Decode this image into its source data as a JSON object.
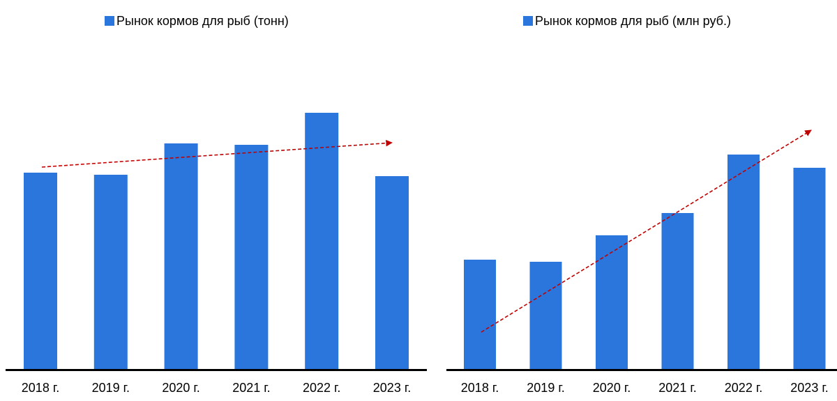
{
  "chart_data": [
    {
      "type": "bar",
      "categories": [
        "2018 г.",
        "2019 г.",
        "2020 г.",
        "2021 г.",
        "2022 г.",
        "2023 г."
      ],
      "series": [
        {
          "name": "Рынок кормов для рыб (тонн)",
          "color": "#2a76dd",
          "values": [
            282,
            279,
            324,
            322,
            368,
            277
          ]
        }
      ],
      "ylim": [
        0,
        400
      ],
      "legend": "top"
    },
    {
      "type": "bar",
      "categories": [
        "2018 г.",
        "2019 г.",
        "2020 г.",
        "2021 г.",
        "2022 г.",
        "2023 г."
      ],
      "series": [
        {
          "name": "Рынок кормов для рыб (млн руб.)",
          "color": "#2a76dd",
          "values": [
            157,
            154,
            192,
            224,
            308,
            289
          ]
        }
      ],
      "ylim": [
        0,
        400
      ],
      "legend": "top"
    }
  ]
}
